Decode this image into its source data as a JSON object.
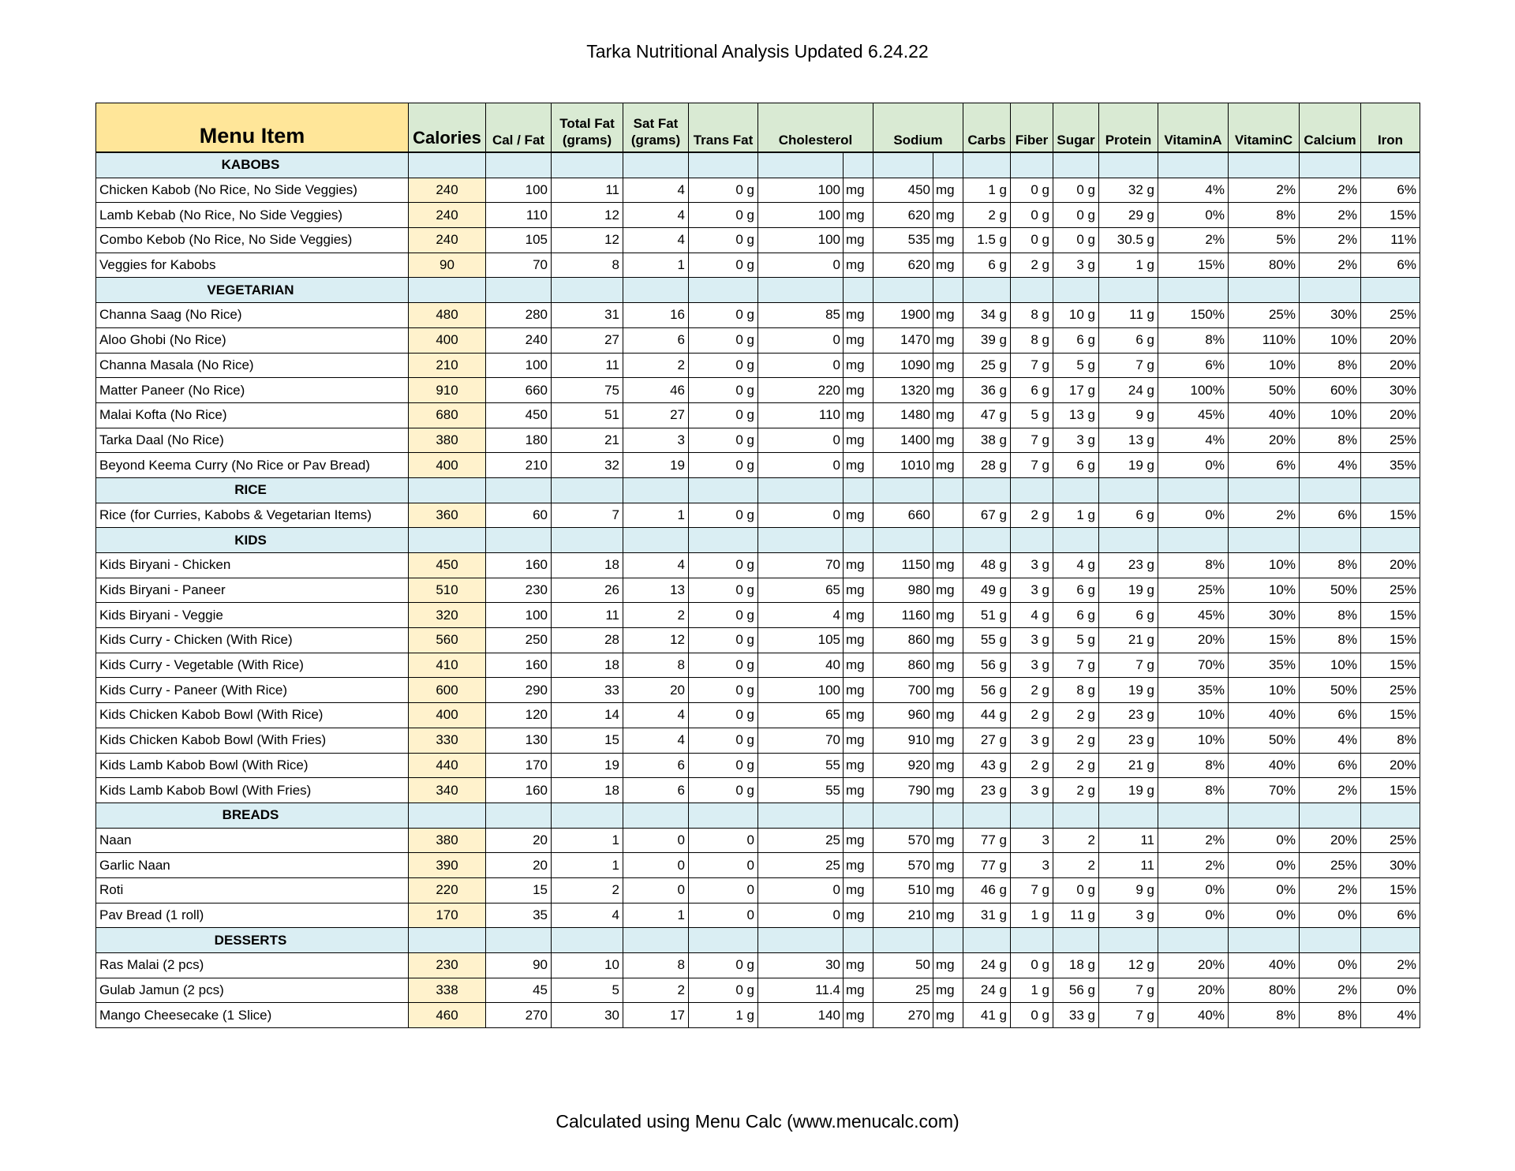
{
  "title": "Tarka Nutritional Analysis Updated 6.24.22",
  "footer": "Calculated using Menu Calc (www.menucalc.com)",
  "colors": {
    "menu_header": "#ffe699",
    "header": "#d9ead3",
    "section": "#daeef3",
    "calories": "#fff2cc"
  },
  "headers": [
    "Menu Item",
    "Calories",
    "Cal / Fat",
    "Total Fat (grams)",
    "Sat Fat (grams)",
    "Trans Fat",
    "Cholesterol",
    "Sodium",
    "Carbs",
    "Fiber",
    "Sugar",
    "Protein",
    "VitaminA",
    "VitaminC",
    "Calcium",
    "Iron"
  ],
  "sections": [
    {
      "name": "KABOBS",
      "rows": [
        [
          "Chicken Kabob (No Rice, No Side Veggies)",
          "240",
          "100",
          "11",
          "4",
          "0 g",
          "100",
          "mg",
          "450",
          "mg",
          "1 g",
          "0 g",
          "0 g",
          "32 g",
          "4%",
          "2%",
          "2%",
          "6%"
        ],
        [
          "Lamb Kebab  (No Rice, No Side Veggies)",
          "240",
          "110",
          "12",
          "4",
          "0 g",
          "100",
          "mg",
          "620",
          "mg",
          "2 g",
          "0 g",
          "0 g",
          "29 g",
          "0%",
          "8%",
          "2%",
          "15%"
        ],
        [
          "Combo Kebob (No Rice, No Side Veggies)",
          "240",
          "105",
          "12",
          "4",
          "0 g",
          "100",
          "mg",
          "535",
          "mg",
          "1.5 g",
          "0 g",
          "0 g",
          "30.5 g",
          "2%",
          "5%",
          "2%",
          "11%"
        ],
        [
          "Veggies for Kabobs",
          "90",
          "70",
          "8",
          "1",
          "0 g",
          "0",
          "mg",
          "620",
          "mg",
          "6 g",
          "2 g",
          "3 g",
          "1 g",
          "15%",
          "80%",
          "2%",
          "6%"
        ]
      ]
    },
    {
      "name": "VEGETARIAN",
      "rows": [
        [
          "Channa Saag (No Rice)",
          "480",
          "280",
          "31",
          "16",
          "0 g",
          "85",
          "mg",
          "1900",
          "mg",
          "34 g",
          "8 g",
          "10 g",
          "11 g",
          "150%",
          "25%",
          "30%",
          "25%"
        ],
        [
          "Aloo Ghobi (No Rice)",
          "400",
          "240",
          "27",
          "6",
          "0 g",
          "0",
          "mg",
          "1470",
          "mg",
          "39 g",
          "8 g",
          "6 g",
          "6 g",
          "8%",
          "110%",
          "10%",
          "20%"
        ],
        [
          "Channa Masala (No Rice)",
          "210",
          "100",
          "11",
          "2",
          "0 g",
          "0",
          "mg",
          "1090",
          "mg",
          "25 g",
          "7 g",
          "5 g",
          "7 g",
          "6%",
          "10%",
          "8%",
          "20%"
        ],
        [
          "Matter Paneer (No Rice)",
          "910",
          "660",
          "75",
          "46",
          "0 g",
          "220",
          "mg",
          "1320",
          "mg",
          "36 g",
          "6 g",
          "17 g",
          "24 g",
          "100%",
          "50%",
          "60%",
          "30%"
        ],
        [
          "Malai Kofta (No Rice)",
          "680",
          "450",
          "51",
          "27",
          "0 g",
          "110",
          "mg",
          "1480",
          "mg",
          "47 g",
          "5 g",
          "13 g",
          "9 g",
          "45%",
          "40%",
          "10%",
          "20%"
        ],
        [
          "Tarka Daal (No Rice)",
          "380",
          "180",
          "21",
          "3",
          "0 g",
          "0",
          "mg",
          "1400",
          "mg",
          "38 g",
          "7 g",
          "3 g",
          "13 g",
          "4%",
          "20%",
          "8%",
          "25%"
        ],
        [
          "Beyond Keema Curry (No Rice or Pav Bread)",
          "400",
          "210",
          "32",
          "19",
          "0 g",
          "0",
          "mg",
          "1010",
          "mg",
          "28 g",
          "7 g",
          "6 g",
          "19 g",
          "0%",
          "6%",
          "4%",
          "35%"
        ]
      ]
    },
    {
      "name": "RICE",
      "rows": [
        [
          "Rice (for Curries, Kabobs & Vegetarian Items)",
          "360",
          "60",
          "7",
          "1",
          "0 g",
          "0",
          "mg",
          "660",
          "",
          "67 g",
          "2 g",
          "1 g",
          "6 g",
          "0%",
          "2%",
          "6%",
          "15%"
        ]
      ]
    },
    {
      "name": "KIDS",
      "rows": [
        [
          "Kids Biryani - Chicken",
          "450",
          "160",
          "18",
          "4",
          "0 g",
          "70",
          "mg",
          "1150",
          "mg",
          "48 g",
          "3 g",
          "4 g",
          "23 g",
          "8%",
          "10%",
          "8%",
          "20%"
        ],
        [
          "Kids Biryani - Paneer",
          "510",
          "230",
          "26",
          "13",
          "0 g",
          "65",
          "mg",
          "980",
          "mg",
          "49 g",
          "3 g",
          "6 g",
          "19 g",
          "25%",
          "10%",
          "50%",
          "25%"
        ],
        [
          "Kids Biryani - Veggie",
          "320",
          "100",
          "11",
          "2",
          "0 g",
          "4",
          "mg",
          "1160",
          "mg",
          "51 g",
          "4 g",
          "6 g",
          "6 g",
          "45%",
          "30%",
          "8%",
          "15%"
        ],
        [
          "Kids Curry - Chicken (With Rice)",
          "560",
          "250",
          "28",
          "12",
          "0 g",
          "105",
          "mg",
          "860",
          "mg",
          "55 g",
          "3 g",
          "5 g",
          "21 g",
          "20%",
          "15%",
          "8%",
          "15%"
        ],
        [
          "Kids Curry - Vegetable (With Rice)",
          "410",
          "160",
          "18",
          "8",
          "0 g",
          "40",
          "mg",
          "860",
          "mg",
          "56 g",
          "3 g",
          "7 g",
          "7 g",
          "70%",
          "35%",
          "10%",
          "15%"
        ],
        [
          "Kids Curry - Paneer (With Rice)",
          "600",
          "290",
          "33",
          "20",
          "0 g",
          "100",
          "mg",
          "700",
          "mg",
          "56 g",
          "2 g",
          "8 g",
          "19 g",
          "35%",
          "10%",
          "50%",
          "25%"
        ],
        [
          "Kids Chicken Kabob Bowl (With Rice)",
          "400",
          "120",
          "14",
          "4",
          "0 g",
          "65",
          "mg",
          "960",
          "mg",
          "44 g",
          "2 g",
          "2 g",
          "23 g",
          "10%",
          "40%",
          "6%",
          "15%"
        ],
        [
          "Kids Chicken Kabob Bowl (With Fries)",
          "330",
          "130",
          "15",
          "4",
          "0 g",
          "70",
          "mg",
          "910",
          "mg",
          "27 g",
          "3 g",
          "2 g",
          "23 g",
          "10%",
          "50%",
          "4%",
          "8%"
        ],
        [
          "Kids Lamb Kabob Bowl (With Rice)",
          "440",
          "170",
          "19",
          "6",
          "0 g",
          "55",
          "mg",
          "920",
          "mg",
          "43 g",
          "2 g",
          "2 g",
          "21 g",
          "8%",
          "40%",
          "6%",
          "20%"
        ],
        [
          "Kids Lamb Kabob Bowl (With Fries)",
          "340",
          "160",
          "18",
          "6",
          "0 g",
          "55",
          "mg",
          "790",
          "mg",
          "23 g",
          "3 g",
          "2 g",
          "19 g",
          "8%",
          "70%",
          "2%",
          "15%"
        ]
      ]
    },
    {
      "name": "BREADS",
      "rows": [
        [
          "Naan",
          "380",
          "20",
          "1",
          "0",
          "0",
          "25",
          "mg",
          "570",
          "mg",
          "77 g",
          "3",
          "2",
          "11",
          "2%",
          "0%",
          "20%",
          "25%"
        ],
        [
          "Garlic Naan",
          "390",
          "20",
          "1",
          "0",
          "0",
          "25",
          "mg",
          "570",
          "mg",
          "77 g",
          "3",
          "2",
          "11",
          "2%",
          "0%",
          "25%",
          "30%"
        ],
        [
          "Roti",
          "220",
          "15",
          "2",
          "0",
          "0",
          "0",
          "mg",
          "510",
          "mg",
          "46 g",
          "7 g",
          "0 g",
          "9 g",
          "0%",
          "0%",
          "2%",
          "15%"
        ],
        [
          "Pav Bread (1 roll)",
          "170",
          "35",
          "4",
          "1",
          "0",
          "0",
          "mg",
          "210",
          "mg",
          "31 g",
          "1 g",
          "11 g",
          "3 g",
          "0%",
          "0%",
          "0%",
          "6%"
        ]
      ]
    },
    {
      "name": "DESSERTS",
      "rows": [
        [
          "Ras Malai  (2 pcs)",
          "230",
          "90",
          "10",
          "8",
          "0 g",
          "30",
          "mg",
          "50",
          "mg",
          "24 g",
          "0 g",
          "18 g",
          "12 g",
          "20%",
          "40%",
          "0%",
          "2%"
        ],
        [
          "Gulab Jamun  (2 pcs)",
          "338",
          "45",
          "5",
          "2",
          "0 g",
          "11.4",
          "mg",
          "25",
          "mg",
          "24 g",
          "1 g",
          "56 g",
          "7 g",
          "20%",
          "80%",
          "2%",
          "0%"
        ],
        [
          "Mango Cheesecake (1 Slice)",
          "460",
          "270",
          "30",
          "17",
          "1 g",
          "140",
          "mg",
          "270",
          "mg",
          "41 g",
          "0 g",
          "33 g",
          "7 g",
          "40%",
          "8%",
          "8%",
          "4%"
        ]
      ]
    }
  ]
}
